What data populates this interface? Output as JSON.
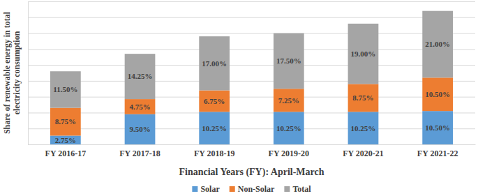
{
  "chart_data": {
    "type": "bar",
    "stacked": true,
    "data_labels": true,
    "grid": true,
    "tick_labels": "x",
    "legend": "bottom",
    "x_label": "Financial Years (FY): April-March",
    "y_label": "Share of renewable energy in total electricity consumption",
    "categories": [
      "FY 2016-17",
      "FY 2017-18",
      "FY 2018-19",
      "FY 2019-20",
      "FY 2020-21",
      "FY 2021-22"
    ],
    "ylim": [
      0,
      45
    ],
    "yticks": [
      0,
      5,
      10,
      15,
      20,
      25,
      30,
      35,
      40,
      45
    ],
    "series": [
      {
        "name": "Solar",
        "color": "#5b9bd5",
        "values": [
          2.75,
          9.5,
          10.25,
          10.25,
          10.25,
          10.5
        ],
        "value_labels": [
          "2.75%",
          "9.50%",
          "10.25%",
          "10.25%",
          "10.25%",
          "10.50%"
        ]
      },
      {
        "name": "Non-Solar",
        "color": "#ed7d31",
        "values": [
          8.75,
          4.75,
          6.75,
          7.25,
          8.75,
          10.5
        ],
        "value_labels": [
          "8.75%",
          "4.75%",
          "6.75%",
          "7.25%",
          "8.75%",
          "10.50%"
        ]
      },
      {
        "name": "Total",
        "color": "#a5a5a5",
        "values": [
          11.5,
          14.25,
          17,
          17.5,
          19,
          21
        ],
        "value_labels": [
          "11.50%",
          "14.25%",
          "17.00%",
          "17.50%",
          "19.00%",
          "21.00%"
        ]
      }
    ]
  }
}
